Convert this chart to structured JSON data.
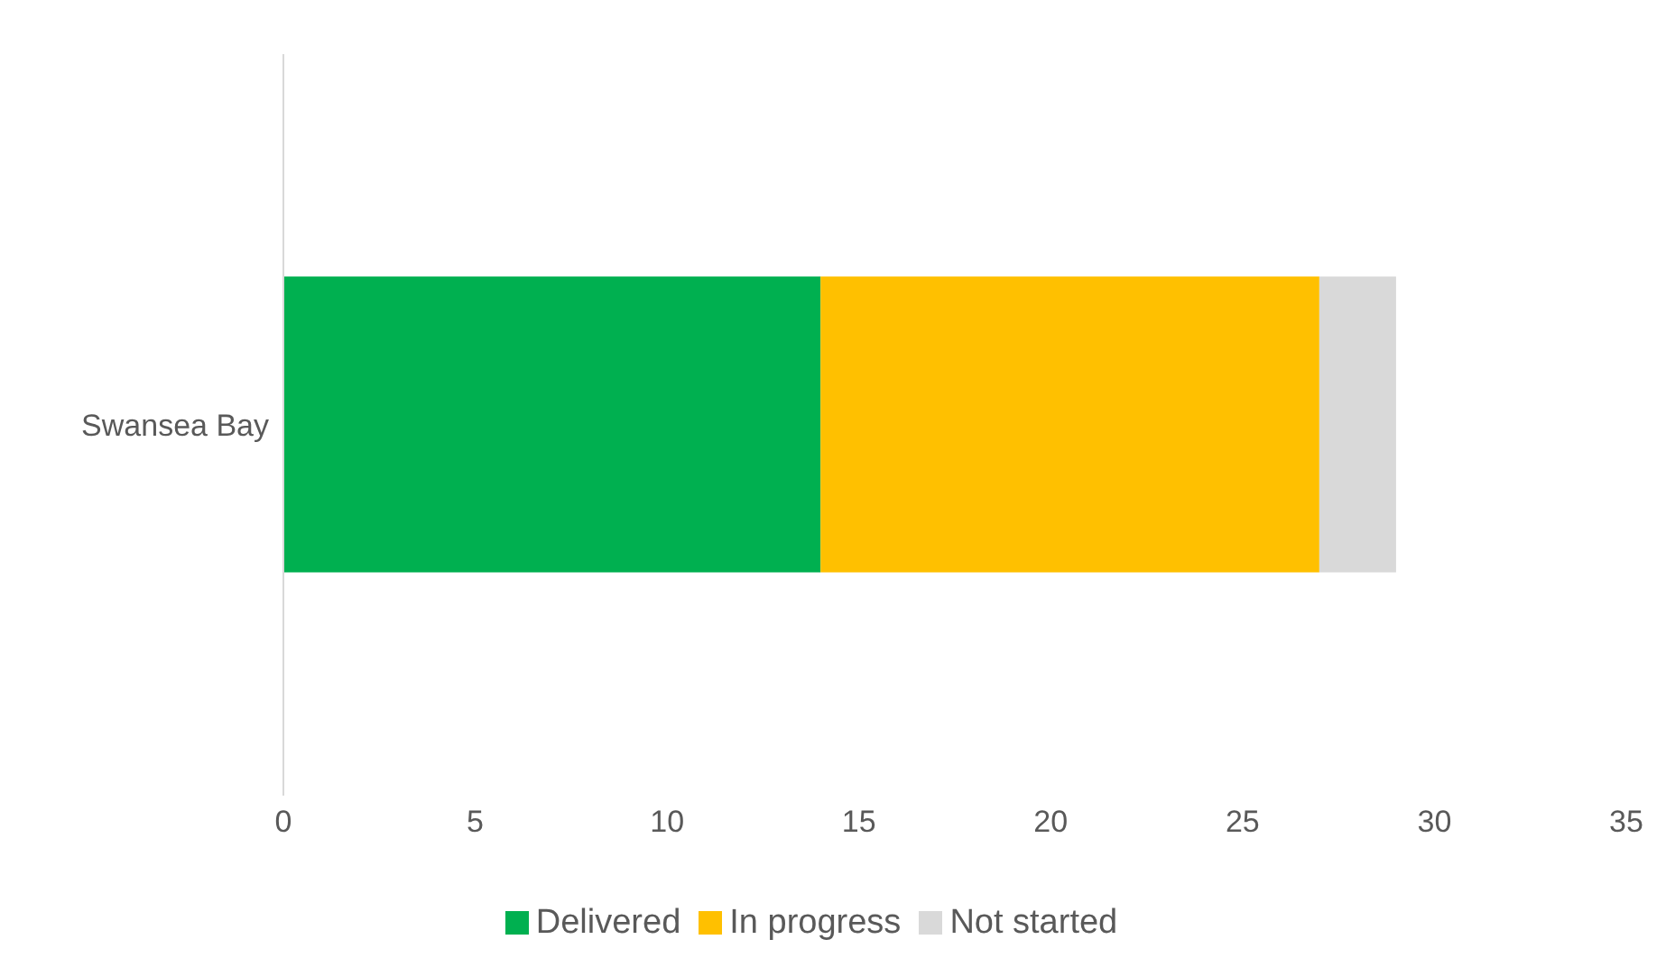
{
  "chart_data": {
    "type": "bar",
    "orientation": "horizontal",
    "stacked": true,
    "categories": [
      "Swansea Bay"
    ],
    "series": [
      {
        "name": "Delivered",
        "color": "#00b050",
        "values": [
          14
        ]
      },
      {
        "name": "In progress",
        "color": "#ffc000",
        "values": [
          13
        ]
      },
      {
        "name": "Not started",
        "color": "#d9d9d9",
        "values": [
          2
        ]
      }
    ],
    "xlim": [
      0,
      35
    ],
    "xticks": [
      0,
      5,
      10,
      15,
      20,
      25,
      30,
      35
    ],
    "grid": false,
    "legend": "bottom"
  }
}
